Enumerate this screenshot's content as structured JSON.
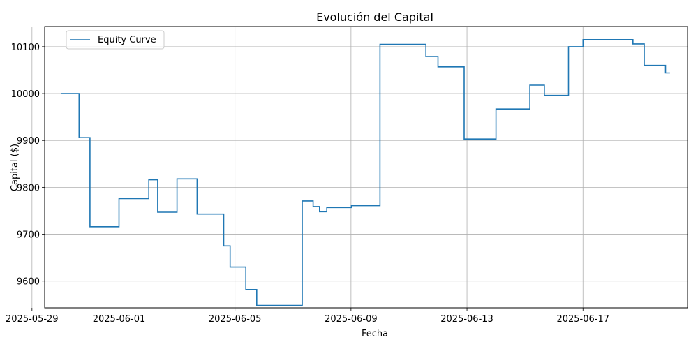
{
  "chart_data": {
    "type": "line",
    "title": "Evolución del Capital",
    "xlabel": "Fecha",
    "ylabel": "Capital ($)",
    "grid": true,
    "legend_position": "top-left",
    "x_axis_type": "date",
    "xlim": [
      "2025-05-29T10:30",
      "2025-06-20T14:30"
    ],
    "ylim": [
      9543,
      10143
    ],
    "x_ticks": [
      "2025-05-29",
      "2025-06-01",
      "2025-06-05",
      "2025-06-09",
      "2025-06-13",
      "2025-06-17"
    ],
    "y_ticks": [
      9600,
      9700,
      9800,
      9900,
      10000,
      10100
    ],
    "series": [
      {
        "name": "Equity Curve",
        "color": "#1f77b4",
        "step": "post",
        "x": [
          "2025-05-30T00:00",
          "2025-05-30T15:00",
          "2025-05-31T00:00",
          "2025-06-01T00:00",
          "2025-06-02T00:40",
          "2025-06-02T08:00",
          "2025-06-03T00:00",
          "2025-06-03T16:40",
          "2025-06-04T00:00",
          "2025-06-04T14:40",
          "2025-06-04T20:00",
          "2025-06-05T00:00",
          "2025-06-05T09:00",
          "2025-06-05T18:00",
          "2025-06-06T00:00",
          "2025-06-07T07:40",
          "2025-06-07T09:20",
          "2025-06-07T16:40",
          "2025-06-07T22:00",
          "2025-06-08T04:00",
          "2025-06-08T22:40",
          "2025-06-09T00:20",
          "2025-06-10T00:00",
          "2025-06-11T00:00",
          "2025-06-11T14:00",
          "2025-06-12T00:00",
          "2025-06-12T21:40",
          "2025-06-13T00:00",
          "2025-06-14T00:00",
          "2025-06-15T04:00",
          "2025-06-15T16:00",
          "2025-06-16T04:40",
          "2025-06-16T12:00",
          "2025-06-16T23:40",
          "2025-06-17T00:00",
          "2025-06-18T10:40",
          "2025-06-18T17:20",
          "2025-06-19T02:40",
          "2025-06-19T20:20",
          "2025-06-20T00:00"
        ],
        "values": [
          10000,
          9906,
          9716,
          9776,
          9816,
          9747,
          9818,
          9743,
          9743,
          9675,
          9630,
          9630,
          9582,
          9548,
          9548,
          9771,
          9771,
          9759,
          9748,
          9757,
          9757,
          9761,
          10105,
          10105,
          10079,
          10057,
          9903,
          9903,
          9967,
          10018,
          9996,
          9996,
          10100,
          10100,
          10115,
          10115,
          10106,
          10060,
          10044,
          10044
        ]
      }
    ]
  }
}
